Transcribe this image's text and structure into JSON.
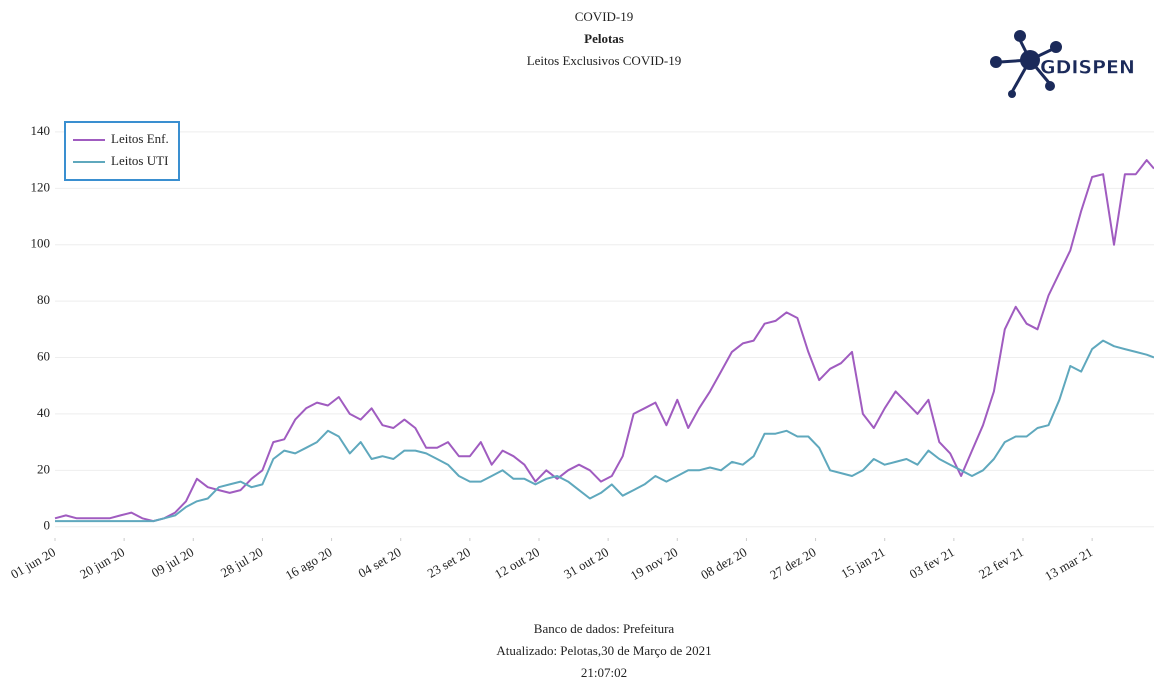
{
  "chart_data": {
    "type": "line",
    "title_lines": [
      "COVID-19",
      "Pelotas",
      "Leitos Exclusivos COVID-19"
    ],
    "footer_lines": [
      "Banco de dados: Prefeitura",
      "Atualizado: Pelotas,30 de Março de 2021",
      "21:07:02"
    ],
    "logo_text": "GDISPEN",
    "legend": "upper left",
    "grid": true,
    "x": [
      "2020-06-01",
      "2020-06-04",
      "2020-06-07",
      "2020-06-10",
      "2020-06-13",
      "2020-06-16",
      "2020-06-19",
      "2020-06-22",
      "2020-06-25",
      "2020-06-28",
      "2020-07-01",
      "2020-07-04",
      "2020-07-07",
      "2020-07-10",
      "2020-07-13",
      "2020-07-16",
      "2020-07-19",
      "2020-07-22",
      "2020-07-25",
      "2020-07-28",
      "2020-07-31",
      "2020-08-03",
      "2020-08-06",
      "2020-08-09",
      "2020-08-12",
      "2020-08-15",
      "2020-08-18",
      "2020-08-21",
      "2020-08-24",
      "2020-08-27",
      "2020-08-30",
      "2020-09-02",
      "2020-09-05",
      "2020-09-08",
      "2020-09-11",
      "2020-09-14",
      "2020-09-17",
      "2020-09-20",
      "2020-09-23",
      "2020-09-26",
      "2020-09-29",
      "2020-10-02",
      "2020-10-05",
      "2020-10-08",
      "2020-10-11",
      "2020-10-14",
      "2020-10-17",
      "2020-10-20",
      "2020-10-23",
      "2020-10-26",
      "2020-10-29",
      "2020-11-01",
      "2020-11-04",
      "2020-11-07",
      "2020-11-10",
      "2020-11-13",
      "2020-11-16",
      "2020-11-19",
      "2020-11-22",
      "2020-11-25",
      "2020-11-28",
      "2020-12-01",
      "2020-12-04",
      "2020-12-07",
      "2020-12-10",
      "2020-12-13",
      "2020-12-16",
      "2020-12-19",
      "2020-12-22",
      "2020-12-25",
      "2020-12-28",
      "2020-12-31",
      "2021-01-03",
      "2021-01-06",
      "2021-01-09",
      "2021-01-12",
      "2021-01-15",
      "2021-01-18",
      "2021-01-21",
      "2021-01-24",
      "2021-01-27",
      "2021-01-30",
      "2021-02-02",
      "2021-02-05",
      "2021-02-08",
      "2021-02-11",
      "2021-02-14",
      "2021-02-17",
      "2021-02-20",
      "2021-02-23",
      "2021-02-26",
      "2021-03-01",
      "2021-03-04",
      "2021-03-07",
      "2021-03-10",
      "2021-03-13",
      "2021-03-16",
      "2021-03-19",
      "2021-03-22",
      "2021-03-25",
      "2021-03-28",
      "2021-03-30"
    ],
    "series": [
      {
        "name": "Leitos Enf.",
        "color": "#a05cc0",
        "values": [
          3,
          4,
          3,
          3,
          3,
          3,
          4,
          5,
          3,
          2,
          3,
          5,
          9,
          17,
          14,
          13,
          12,
          13,
          17,
          20,
          30,
          31,
          38,
          42,
          44,
          43,
          46,
          40,
          38,
          42,
          36,
          35,
          38,
          35,
          28,
          28,
          30,
          25,
          25,
          30,
          22,
          27,
          25,
          22,
          16,
          20,
          17,
          20,
          22,
          20,
          16,
          18,
          25,
          40,
          42,
          44,
          36,
          45,
          35,
          42,
          48,
          55,
          62,
          65,
          66,
          72,
          73,
          76,
          74,
          62,
          52,
          56,
          58,
          62,
          40,
          35,
          42,
          48,
          44,
          40,
          45,
          30,
          26,
          18,
          27,
          36,
          48,
          70,
          78,
          72,
          70,
          82,
          90,
          98,
          112,
          124,
          125,
          100,
          125,
          125,
          130,
          127
        ]
      },
      {
        "name": "Leitos UTI",
        "color": "#5fa8bd",
        "values": [
          2,
          2,
          2,
          2,
          2,
          2,
          2,
          2,
          2,
          2,
          3,
          4,
          7,
          9,
          10,
          14,
          15,
          16,
          14,
          15,
          24,
          27,
          26,
          28,
          30,
          34,
          32,
          26,
          30,
          24,
          25,
          24,
          27,
          27,
          26,
          24,
          22,
          18,
          16,
          16,
          18,
          20,
          17,
          17,
          15,
          17,
          18,
          16,
          13,
          10,
          12,
          15,
          11,
          13,
          15,
          18,
          16,
          18,
          20,
          20,
          21,
          20,
          23,
          22,
          25,
          33,
          33,
          34,
          32,
          32,
          28,
          20,
          19,
          18,
          20,
          24,
          22,
          23,
          24,
          22,
          27,
          24,
          22,
          20,
          18,
          20,
          24,
          30,
          32,
          32,
          35,
          36,
          45,
          57,
          55,
          63,
          66,
          64,
          63,
          62,
          61,
          60
        ]
      }
    ],
    "xlim": [
      "2020-06-01",
      "2021-03-30"
    ],
    "xticks": [
      {
        "value": "2020-06-01",
        "label": "01 jun 20"
      },
      {
        "value": "2020-06-20",
        "label": "20 jun 20"
      },
      {
        "value": "2020-07-09",
        "label": "09 jul 20"
      },
      {
        "value": "2020-07-28",
        "label": "28 jul 20"
      },
      {
        "value": "2020-08-16",
        "label": "16 ago 20"
      },
      {
        "value": "2020-09-04",
        "label": "04 set 20"
      },
      {
        "value": "2020-09-23",
        "label": "23 set 20"
      },
      {
        "value": "2020-10-12",
        "label": "12 out 20"
      },
      {
        "value": "2020-10-31",
        "label": "31 out 20"
      },
      {
        "value": "2020-11-19",
        "label": "19 nov 20"
      },
      {
        "value": "2020-12-08",
        "label": "08 dez 20"
      },
      {
        "value": "2020-12-27",
        "label": "27 dez 20"
      },
      {
        "value": "2021-01-15",
        "label": "15 jan 21"
      },
      {
        "value": "2021-02-03",
        "label": "03 fev 21"
      },
      {
        "value": "2021-02-22",
        "label": "22 fev 21"
      },
      {
        "value": "2021-03-13",
        "label": "13 mar 21"
      }
    ],
    "ylim": [
      -4,
      146
    ],
    "yticks": [
      0,
      20,
      40,
      60,
      80,
      100,
      120,
      140
    ]
  }
}
